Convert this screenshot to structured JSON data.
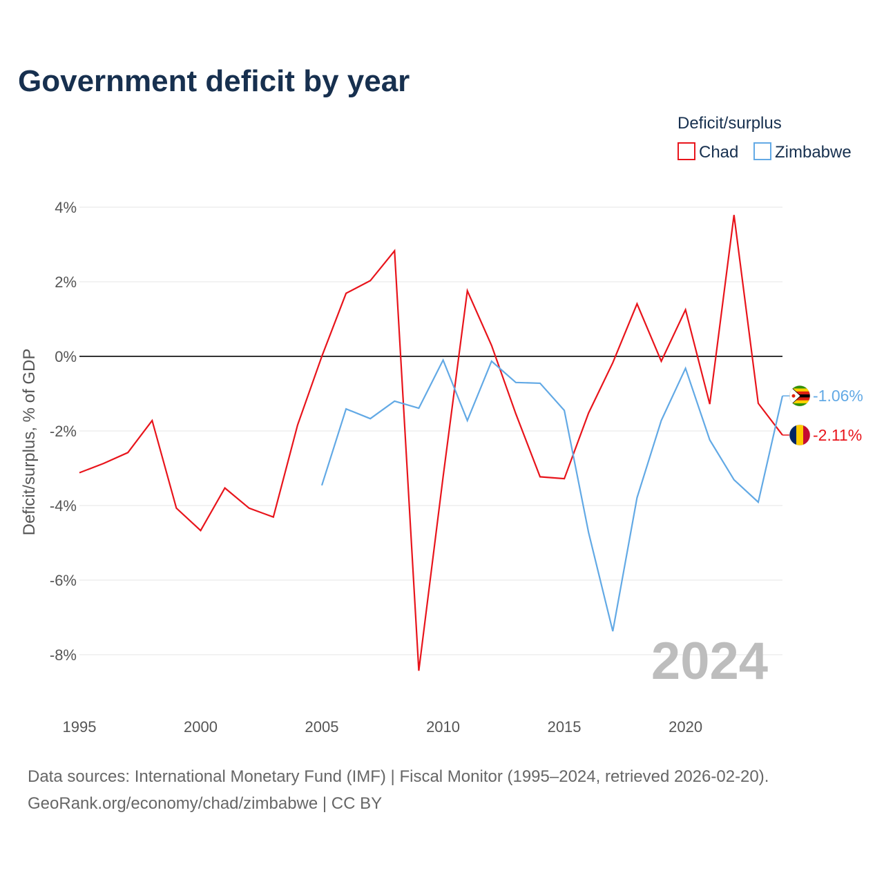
{
  "chart_data": {
    "type": "line",
    "title": "Government deficit by year",
    "ylabel": "Deficit/surplus, % of GDP",
    "xlabel": "",
    "legend_title": "Deficit/surplus",
    "legend_position": "top-right",
    "xlim": [
      1995,
      2024
    ],
    "ylim": [
      -9,
      4
    ],
    "x_ticks": [
      1995,
      2000,
      2005,
      2010,
      2015,
      2020
    ],
    "x_tick_labels": [
      "1995",
      "2000",
      "2005",
      "2010",
      "2015",
      "2020"
    ],
    "y_ticks": [
      4,
      2,
      0,
      -2,
      -4,
      -6,
      -8
    ],
    "y_tick_labels": [
      "4%",
      "2%",
      "0%",
      "-2%",
      "-4%",
      "-6%",
      "-8%"
    ],
    "year_stamp": "2024",
    "series": [
      {
        "name": "Chad",
        "color": "#e8141b",
        "end_label": "-2.11%",
        "flag_icon": "chad-flag-icon",
        "x": [
          1995,
          1996,
          1997,
          1998,
          1999,
          2000,
          2001,
          2002,
          2003,
          2004,
          2005,
          2006,
          2007,
          2008,
          2009,
          2010,
          2011,
          2012,
          2013,
          2014,
          2015,
          2016,
          2017,
          2018,
          2019,
          2020,
          2021,
          2022,
          2023,
          2024
        ],
        "values": [
          -3.12,
          -2.87,
          -2.58,
          -1.72,
          -4.07,
          -4.67,
          -3.53,
          -4.07,
          -4.31,
          -1.84,
          0.0,
          1.69,
          2.03,
          2.83,
          -8.43,
          -3.23,
          1.76,
          0.29,
          -1.54,
          -3.23,
          -3.28,
          -1.52,
          -0.17,
          1.41,
          -0.13,
          1.25,
          -1.28,
          3.79,
          -1.26,
          -2.11
        ]
      },
      {
        "name": "Zimbabwe",
        "color": "#62a9e5",
        "end_label": "-1.06%",
        "flag_icon": "zimbabwe-flag-icon",
        "x": [
          2005,
          2006,
          2007,
          2008,
          2009,
          2010,
          2011,
          2012,
          2013,
          2014,
          2015,
          2016,
          2017,
          2018,
          2019,
          2020,
          2021,
          2022,
          2023,
          2024
        ],
        "values": [
          -3.46,
          -1.41,
          -1.67,
          -1.2,
          -1.39,
          -0.1,
          -1.72,
          -0.13,
          -0.7,
          -0.72,
          -1.45,
          -4.72,
          -7.37,
          -3.79,
          -1.72,
          -0.32,
          -2.24,
          -3.31,
          -3.91,
          -1.06
        ]
      }
    ]
  },
  "footer": {
    "source_line": "Data sources: International Monetary Fund (IMF) | Fiscal Monitor (1995–2024, retrieved 2026-02-20).",
    "credit_line": "GeoRank.org/economy/chad/zimbabwe | CC BY"
  }
}
